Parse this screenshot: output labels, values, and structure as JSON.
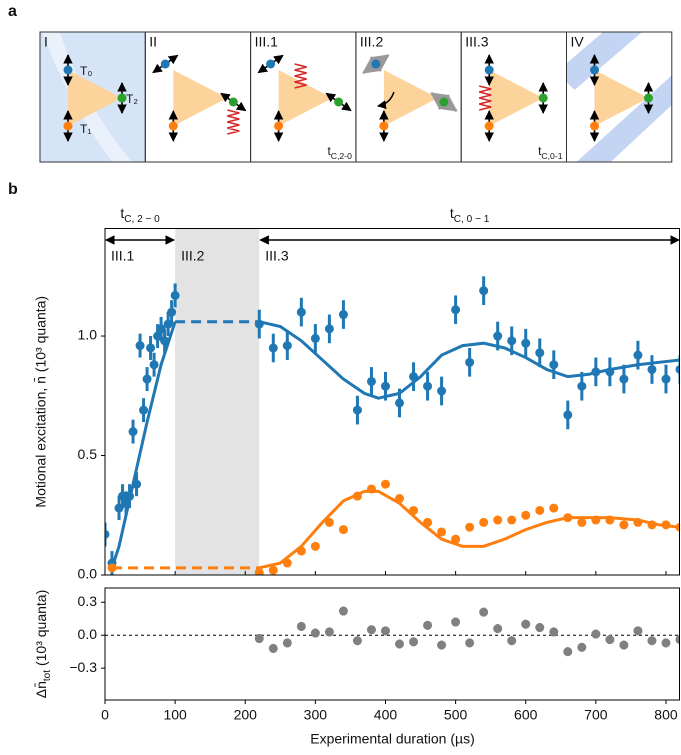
{
  "panel_a": {
    "label": "a",
    "boxes": [
      {
        "label": "I",
        "ion_labels": [
          "T₀",
          "T₂",
          "T₁"
        ]
      },
      {
        "label": "II"
      },
      {
        "label": "III.1",
        "duration": {
          "main": "t",
          "sub": "C,2-0"
        }
      },
      {
        "label": "III.2"
      },
      {
        "label": "III.3",
        "duration": {
          "main": "t",
          "sub": "C,0-1"
        }
      },
      {
        "label": "IV"
      }
    ]
  },
  "panel_b": {
    "label": "b"
  },
  "chart_data": [
    {
      "type": "scatter",
      "ylabel": "Motional excitation, n̄ (10³ quanta)",
      "xlim": [
        0,
        820
      ],
      "ylim": [
        0,
        1.45
      ],
      "yticks": [
        {
          "value": 0,
          "label": "0.0"
        },
        {
          "value": 0.5,
          "label": "0.5"
        },
        {
          "value": 1,
          "label": "1.0"
        }
      ],
      "shade": {
        "x": [
          100,
          220
        ],
        "color": "#e3e3e3"
      },
      "spans": [
        {
          "main": "t",
          "sub": "C, 2 − 0",
          "x": [
            0,
            100
          ]
        },
        {
          "main": "t",
          "sub": "C, 0 − 1",
          "x": [
            220,
            820
          ]
        }
      ],
      "phases": [
        {
          "text": "III.1",
          "x": 0
        },
        {
          "text": "III.2",
          "x": 100
        },
        {
          "text": "III.3",
          "x": 220
        }
      ],
      "series": [
        {
          "color": "#1f77b4",
          "x": [
            0,
            10,
            20,
            25,
            30,
            35,
            40,
            45,
            50,
            55,
            60,
            65,
            70,
            75,
            80,
            85,
            90,
            95,
            100,
            220,
            240,
            260,
            280,
            300,
            320,
            340,
            360,
            380,
            400,
            420,
            440,
            460,
            480,
            500,
            520,
            540,
            560,
            580,
            600,
            620,
            640,
            660,
            680,
            700,
            720,
            740,
            760,
            780,
            800,
            820
          ],
          "values": [
            0.17,
            0.05,
            0.28,
            0.33,
            0.3,
            0.33,
            0.6,
            0.38,
            0.96,
            0.69,
            0.82,
            0.95,
            0.88,
            1.0,
            1.03,
            0.98,
            1.05,
            1.1,
            1.17,
            1.05,
            0.95,
            0.96,
            1.1,
            0.99,
            1.03,
            1.09,
            0.69,
            0.81,
            0.79,
            0.72,
            0.83,
            0.79,
            0.77,
            1.11,
            0.89,
            1.19,
            1.0,
            0.98,
            0.97,
            0.93,
            0.88,
            0.67,
            0.79,
            0.85,
            0.85,
            0.82,
            0.92,
            0.86,
            0.82,
            0.86
          ],
          "errors": [
            0.05,
            0.05,
            0.05,
            0.05,
            0.05,
            0.05,
            0.05,
            0.05,
            0.05,
            0.05,
            0.05,
            0.05,
            0.05,
            0.05,
            0.05,
            0.05,
            0.05,
            0.05,
            0.05,
            0.06,
            0.06,
            0.06,
            0.06,
            0.06,
            0.06,
            0.06,
            0.06,
            0.06,
            0.06,
            0.06,
            0.06,
            0.06,
            0.06,
            0.06,
            0.06,
            0.06,
            0.06,
            0.06,
            0.06,
            0.06,
            0.06,
            0.06,
            0.06,
            0.06,
            0.06,
            0.06,
            0.06,
            0.06,
            0.06,
            0.06
          ]
        },
        {
          "color": "#ff7f0e",
          "x": [
            10,
            220,
            240,
            260,
            280,
            300,
            320,
            340,
            360,
            380,
            400,
            420,
            440,
            460,
            480,
            500,
            520,
            540,
            560,
            580,
            600,
            620,
            640,
            660,
            680,
            700,
            720,
            740,
            760,
            780,
            800,
            820
          ],
          "values": [
            0.03,
            0.01,
            0.02,
            0.05,
            0.1,
            0.12,
            0.22,
            0.19,
            0.33,
            0.36,
            0.38,
            0.32,
            0.27,
            0.22,
            0.18,
            0.15,
            0.2,
            0.22,
            0.23,
            0.23,
            0.25,
            0.27,
            0.28,
            0.24,
            0.22,
            0.23,
            0.23,
            0.21,
            0.22,
            0.21,
            0.21,
            0.2
          ]
        }
      ],
      "fits": [
        {
          "color": "#1f77b4",
          "dashed": false,
          "x": [
            10,
            20,
            40,
            60,
            80,
            100
          ],
          "values": [
            0.03,
            0.12,
            0.38,
            0.64,
            0.88,
            1.06
          ]
        },
        {
          "color": "#1f77b4",
          "dashed": true,
          "x": [
            100,
            220
          ],
          "values": [
            1.06,
            1.06
          ]
        },
        {
          "color": "#1f77b4",
          "dashed": false,
          "x": [
            220,
            250,
            280,
            310,
            340,
            370,
            390,
            420,
            450,
            480,
            510,
            540,
            570,
            600,
            630,
            660,
            690,
            720,
            760,
            790,
            820
          ],
          "values": [
            1.06,
            1.04,
            0.98,
            0.9,
            0.82,
            0.76,
            0.74,
            0.76,
            0.83,
            0.92,
            0.96,
            0.97,
            0.95,
            0.91,
            0.86,
            0.83,
            0.84,
            0.86,
            0.88,
            0.89,
            0.9
          ]
        },
        {
          "color": "#ff7f0e",
          "dashed": true,
          "x": [
            10,
            220
          ],
          "values": [
            0.03,
            0.03
          ]
        },
        {
          "color": "#ff7f0e",
          "dashed": false,
          "x": [
            220,
            250,
            280,
            310,
            340,
            370,
            390,
            420,
            450,
            480,
            510,
            540,
            570,
            600,
            630,
            660,
            690,
            720,
            760,
            790,
            820
          ],
          "values": [
            0.03,
            0.05,
            0.12,
            0.22,
            0.31,
            0.35,
            0.35,
            0.3,
            0.22,
            0.15,
            0.12,
            0.12,
            0.15,
            0.19,
            0.22,
            0.24,
            0.24,
            0.24,
            0.23,
            0.21,
            0.2
          ]
        }
      ]
    },
    {
      "type": "scatter",
      "ylabel": {
        "main": "Δn̄",
        "sub": "tot",
        "rest": " (10³ quanta)"
      },
      "xlabel": "Experimental duration (µs)",
      "xlim": [
        0,
        820
      ],
      "ylim": [
        -0.59,
        0.43
      ],
      "xticks": [
        0,
        100,
        200,
        300,
        400,
        500,
        600,
        700,
        800
      ],
      "yticks": [
        {
          "value": 0.3,
          "label": "0.3"
        },
        {
          "value": 0,
          "label": "0.0"
        },
        {
          "value": -0.3,
          "label": "−0.3"
        }
      ],
      "reference_line": 0,
      "series": [
        {
          "color": "#808080",
          "x": [
            220,
            240,
            260,
            280,
            300,
            320,
            340,
            360,
            380,
            400,
            420,
            440,
            460,
            480,
            500,
            520,
            540,
            560,
            580,
            600,
            620,
            640,
            660,
            680,
            700,
            720,
            740,
            760,
            780,
            800,
            820
          ],
          "values": [
            -0.03,
            -0.12,
            -0.07,
            0.08,
            0.02,
            0.03,
            0.22,
            -0.05,
            0.05,
            0.04,
            -0.08,
            -0.06,
            0.09,
            -0.09,
            0.12,
            -0.07,
            0.21,
            0.06,
            -0.05,
            0.1,
            0.07,
            0.03,
            -0.15,
            -0.11,
            0.01,
            -0.04,
            -0.09,
            0.04,
            -0.05,
            -0.07,
            -0.04
          ],
          "errors": [
            0.04,
            0.04,
            0.04,
            0.04,
            0.04,
            0.04,
            0.04,
            0.04,
            0.04,
            0.04,
            0.04,
            0.04,
            0.04,
            0.04,
            0.04,
            0.04,
            0.04,
            0.04,
            0.04,
            0.04,
            0.04,
            0.04,
            0.04,
            0.04,
            0.04,
            0.04,
            0.04,
            0.04,
            0.04,
            0.04,
            0.04
          ]
        }
      ]
    }
  ]
}
